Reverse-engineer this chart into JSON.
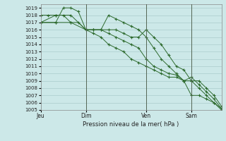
{
  "background_color": "#cce8e8",
  "grid_color": "#aacccc",
  "line_color": "#2d6a2d",
  "xlabel": "Pression niveau de la mer( hPa )",
  "ylim": [
    1005,
    1019.5
  ],
  "yticks": [
    1005,
    1006,
    1007,
    1008,
    1009,
    1010,
    1011,
    1012,
    1013,
    1014,
    1015,
    1016,
    1017,
    1018,
    1019
  ],
  "xtick_labels": [
    "Jeu",
    "Dim",
    "Ven",
    "Sam"
  ],
  "xtick_positions": [
    0,
    24,
    56,
    80
  ],
  "vline_positions": [
    24,
    56,
    80
  ],
  "xlim": [
    0,
    96
  ],
  "line1_x": [
    0,
    8,
    16,
    24,
    28,
    32,
    36,
    40,
    44,
    48,
    52,
    56,
    60,
    64,
    68,
    72,
    76,
    80,
    84,
    88,
    92,
    96
  ],
  "line1_y": [
    1017,
    1018,
    1018,
    1016,
    1016,
    1016,
    1015.5,
    1015,
    1014.5,
    1014,
    1013.5,
    1012,
    1011,
    1010.5,
    1010,
    1009.8,
    1009,
    1009,
    1008,
    1007,
    1006,
    1005
  ],
  "line2_x": [
    0,
    4,
    8,
    12,
    16,
    20,
    24,
    28,
    32,
    36,
    40,
    44,
    48,
    52,
    56,
    60,
    64,
    68,
    72,
    76,
    80,
    84,
    88,
    92,
    96
  ],
  "line2_y": [
    1018,
    1018,
    1018,
    1018,
    1017,
    1017,
    1016,
    1016,
    1016,
    1016,
    1016,
    1015.5,
    1015,
    1015,
    1016,
    1015,
    1014,
    1012.5,
    1011,
    1010.5,
    1009,
    1009,
    1008,
    1007,
    1005.5
  ],
  "line3_x": [
    0,
    8,
    12,
    16,
    20,
    24,
    28,
    32,
    36,
    40,
    44,
    48,
    52,
    56,
    60,
    64,
    68,
    72,
    76,
    80,
    84,
    88,
    92,
    96
  ],
  "line3_y": [
    1017,
    1017,
    1019,
    1019,
    1018.5,
    1016,
    1016,
    1016,
    1018,
    1017.5,
    1017,
    1016.5,
    1016,
    1015,
    1013.5,
    1012,
    1011,
    1010,
    1009,
    1007,
    1007,
    1006.5,
    1006,
    1005.2
  ],
  "line4_x": [
    0,
    8,
    16,
    24,
    28,
    32,
    36,
    40,
    44,
    48,
    52,
    56,
    60,
    64,
    68,
    72,
    76,
    80,
    84,
    88,
    92,
    96
  ],
  "line4_y": [
    1017,
    1017,
    1017,
    1016,
    1015.5,
    1015,
    1014,
    1013.5,
    1013,
    1012,
    1011.5,
    1011,
    1010.5,
    1010,
    1009.5,
    1009.5,
    1009,
    1009.5,
    1008.5,
    1007.5,
    1006.5,
    1005.2
  ]
}
